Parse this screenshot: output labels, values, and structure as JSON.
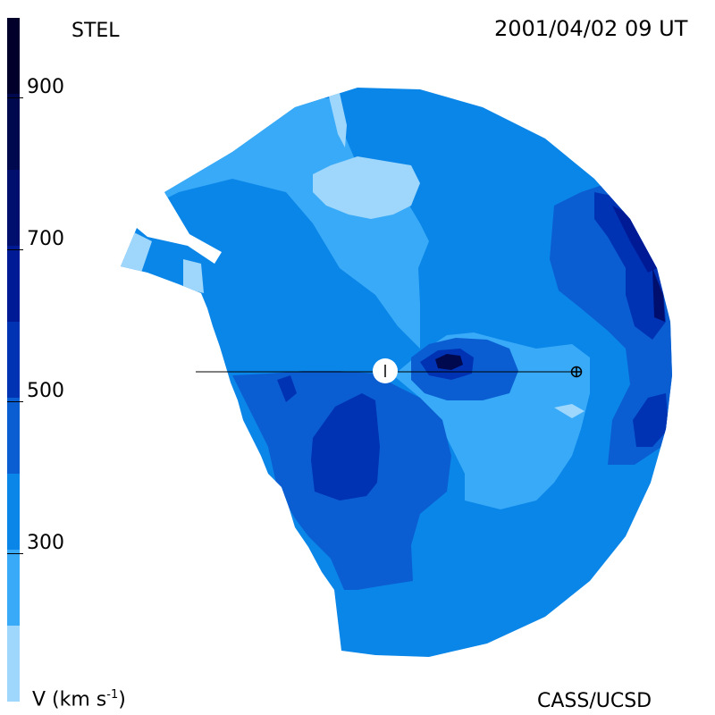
{
  "header": {
    "source": "STEL",
    "timestamp": "2001/04/02 09 UT"
  },
  "footer": {
    "credit": "CASS/UCSD"
  },
  "colorbar": {
    "unit_label": "V (km s",
    "unit_exp": "-1",
    "unit_close": ")",
    "ticks": [
      "900",
      "700",
      "500",
      "300"
    ],
    "levels": [
      {
        "from": 1000,
        "to": 900,
        "color": "#00002a"
      },
      {
        "from": 900,
        "to": 800,
        "color": "#00084e"
      },
      {
        "from": 800,
        "to": 700,
        "color": "#000f6e"
      },
      {
        "from": 700,
        "to": 600,
        "color": "#001a96"
      },
      {
        "from": 600,
        "to": 500,
        "color": "#0032b4"
      },
      {
        "from": 500,
        "to": 400,
        "color": "#0a5ed2"
      },
      {
        "from": 400,
        "to": 300,
        "color": "#0a86e8"
      },
      {
        "from": 300,
        "to": 200,
        "color": "#38aaf8"
      },
      {
        "from": 200,
        "to": 100,
        "color": "#9ed6fc"
      }
    ]
  },
  "map": {
    "center_symbol": "sun",
    "earth_symbol": "earth-symbol"
  }
}
